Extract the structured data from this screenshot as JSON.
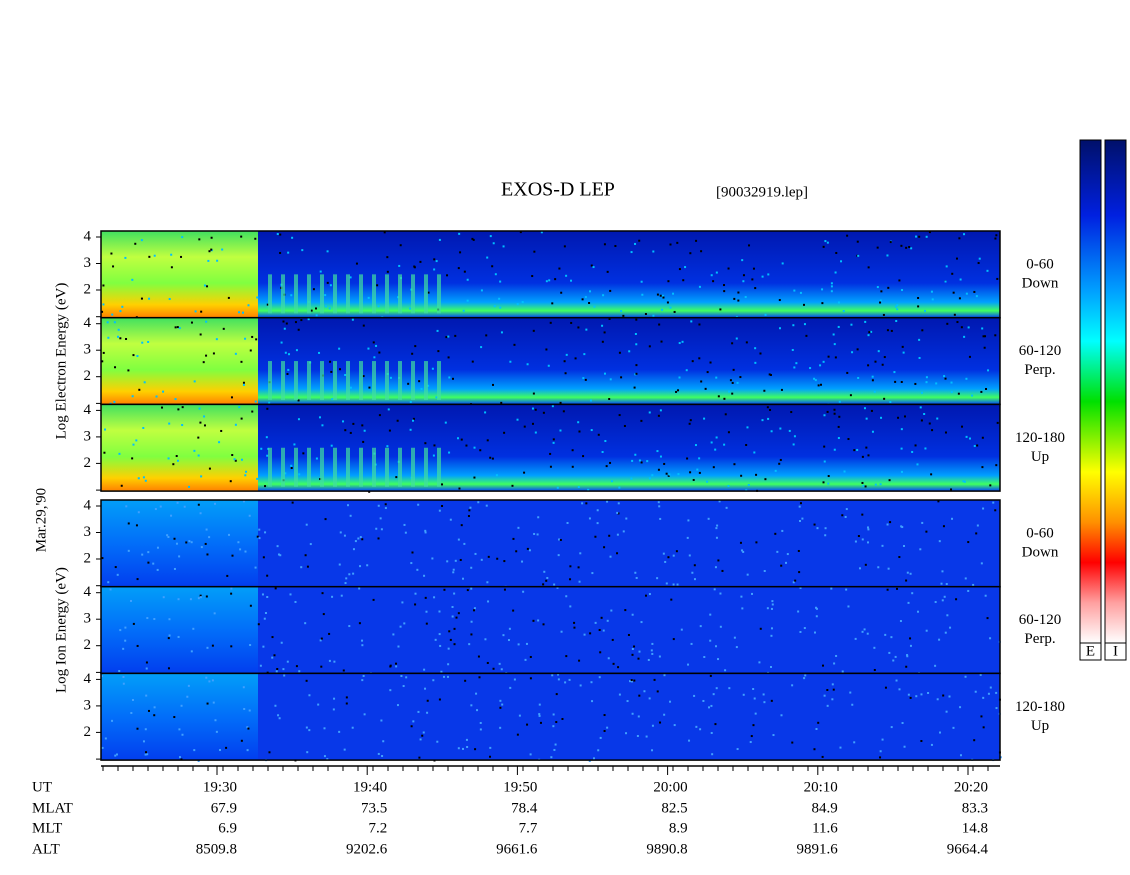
{
  "header": {
    "title": "EXOS-D LEP",
    "file": "[90032919.lep]"
  },
  "date": "Mar.29,'90",
  "groups": [
    {
      "axis_label": "Log Electron Energy (eV)",
      "panels": [
        {
          "range": "0-60",
          "direction": "Down"
        },
        {
          "range": "60-120",
          "direction": "Perp."
        },
        {
          "range": "120-180",
          "direction": "Up"
        }
      ]
    },
    {
      "axis_label": "Log Ion Energy (eV)",
      "panels": [
        {
          "range": "0-60",
          "direction": "Down"
        },
        {
          "range": "60-120",
          "direction": "Perp."
        },
        {
          "range": "120-180",
          "direction": "Up"
        }
      ]
    }
  ],
  "yticks": [
    "4",
    "3",
    "2"
  ],
  "colorbar": {
    "labels": [
      "E",
      "I"
    ]
  },
  "ephemeris": {
    "row_labels": [
      "UT",
      "MLAT",
      "MLT",
      "ALT"
    ],
    "columns": [
      [
        "19:30",
        "67.9",
        "6.9",
        "8509.8"
      ],
      [
        "19:40",
        "73.5",
        "7.2",
        "9202.6"
      ],
      [
        "19:50",
        "78.4",
        "7.7",
        "9661.6"
      ],
      [
        "20:00",
        "82.5",
        "8.9",
        "9890.8"
      ],
      [
        "20:10",
        "84.9",
        "11.6",
        "9891.6"
      ],
      [
        "20:20",
        "83.3",
        "14.8",
        "9664.4"
      ]
    ]
  }
}
